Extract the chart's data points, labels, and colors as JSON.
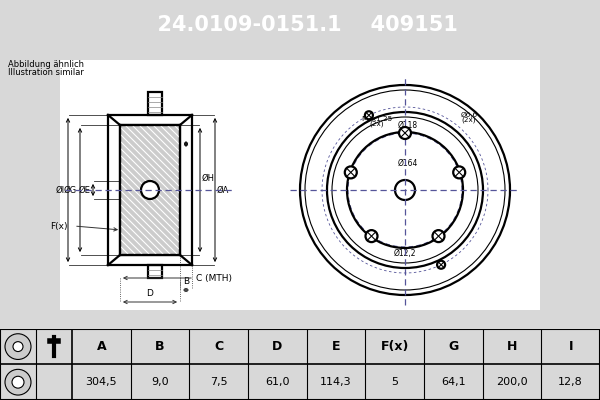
{
  "title_part": "24.0109-0151.1",
  "title_ref": "409151",
  "header_bg": "#1a5fa8",
  "header_text_color": "#ffffff",
  "bg_color": "#d8d8d8",
  "table_headers": [
    "A",
    "B",
    "C",
    "D",
    "E",
    "F(x)",
    "G",
    "H",
    "I"
  ],
  "table_values": [
    "304,5",
    "9,0",
    "7,5",
    "61,0",
    "114,3",
    "5",
    "64,1",
    "200,0",
    "12,8"
  ],
  "note_line1": "Abbildung ähnlich",
  "note_line2": "Illustration similar"
}
